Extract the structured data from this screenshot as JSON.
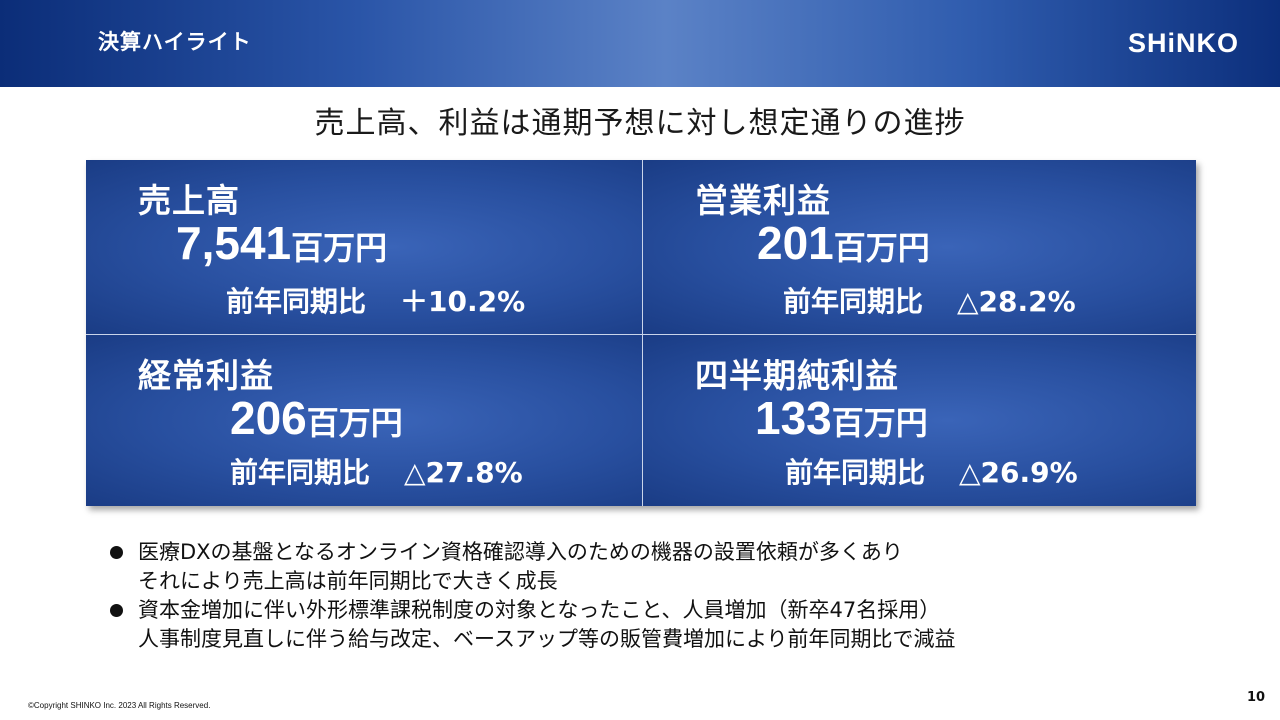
{
  "header": {
    "title": "決算ハイライト",
    "logo_text": "SHiNKO"
  },
  "headline": "売上高、利益は通期予想に対し想定通りの進捗",
  "metrics": [
    {
      "label": "売上高",
      "value": "7,541",
      "unit": "百万円",
      "yoy_label": "前年同期比",
      "yoy_value": "＋10.2%"
    },
    {
      "label": "営業利益",
      "value": "201",
      "unit": "百万円",
      "yoy_label": "前年同期比",
      "yoy_value": "△28.2%"
    },
    {
      "label": "経常利益",
      "value": "206",
      "unit": "百万円",
      "yoy_label": "前年同期比",
      "yoy_value": "△27.8%"
    },
    {
      "label": "四半期純利益",
      "value": "133",
      "unit": "百万円",
      "yoy_label": "前年同期比",
      "yoy_value": "△26.9%"
    }
  ],
  "bullets": [
    {
      "line1": "医療DXの基盤となるオンライン資格確認導入のための機器の設置依頼が多くあり",
      "line2": "それにより売上高は前年同期比で大きく成長"
    },
    {
      "line1": "資本金増加に伴い外形標準課税制度の対象となったこと、人員増加（新卒47名採用）",
      "line2": "人事制度見直しに伴う給与改定、ベースアップ等の販管費増加により前年同期比で減益"
    }
  ],
  "footer": {
    "copyright": "©Copyright SHINKO Inc. 2023 All Rights Reserved.",
    "page_number": "10"
  },
  "colors": {
    "header_dark": "#0b2d78",
    "header_light": "#5b82c6",
    "panel_blue": "#284f9f"
  }
}
